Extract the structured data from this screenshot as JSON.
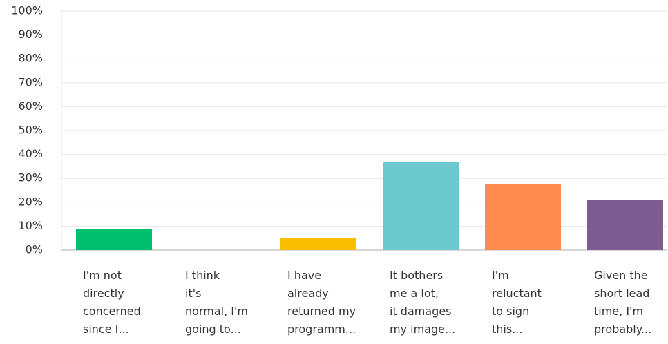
{
  "chart_data": {
    "type": "bar",
    "categories": [
      "I'm not\ndirectly\nconcerned\nsince I...",
      "I think\nit's\nnormal, I'm\ngoing to...",
      "I have\nalready\nreturned my\nprogramm...",
      "It bothers\nme a lot,\nit damages\nmy image...",
      "I'm\nreluctant\nto sign\nthis...",
      "Given the\nshort lead\ntime, I'm\nprobably..."
    ],
    "values": [
      8.7,
      0,
      5.2,
      36.7,
      27.7,
      21.1
    ],
    "colors": [
      "#00bf6f",
      "#507cb6",
      "#f9be00",
      "#6bc8cd",
      "#ff8b4f",
      "#7d5c91"
    ],
    "ylim": [
      0,
      100
    ],
    "yticks": [
      {
        "value": 0,
        "label": "0%"
      },
      {
        "value": 10,
        "label": "10%"
      },
      {
        "value": 20,
        "label": "20%"
      },
      {
        "value": 30,
        "label": "30%"
      },
      {
        "value": 40,
        "label": "40%"
      },
      {
        "value": 50,
        "label": "50%"
      },
      {
        "value": 60,
        "label": "60%"
      },
      {
        "value": 70,
        "label": "70%"
      },
      {
        "value": 80,
        "label": "80%"
      },
      {
        "value": 90,
        "label": "90%"
      },
      {
        "value": 100,
        "label": "100%"
      }
    ],
    "grid": true
  }
}
